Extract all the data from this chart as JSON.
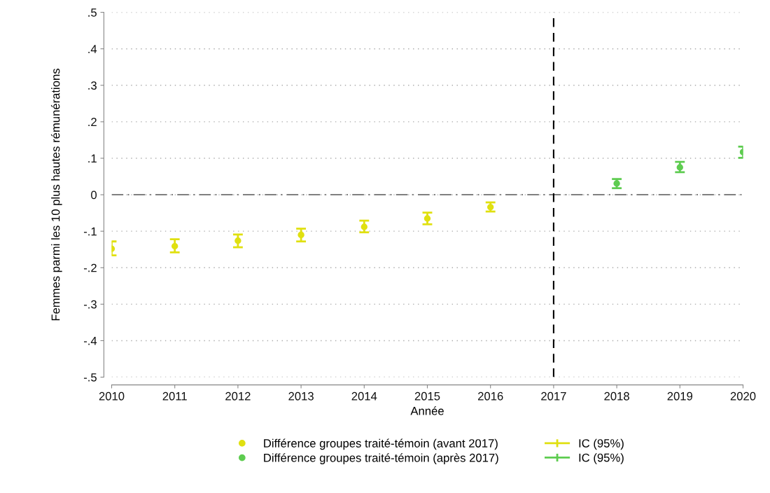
{
  "chart_data": {
    "type": "scatter",
    "xlabel": "Année",
    "ylabel": "Femmes parmi les 10 plus hautes rémunérations",
    "xlim": [
      2010,
      2020
    ],
    "xticks": [
      2010,
      2011,
      2012,
      2013,
      2014,
      2015,
      2016,
      2017,
      2018,
      2019,
      2020
    ],
    "ylim": [
      -0.5,
      0.5
    ],
    "yticks": [
      {
        "value": -0.5,
        "label": "-.5"
      },
      {
        "value": -0.4,
        "label": "-.4"
      },
      {
        "value": -0.3,
        "label": "-.3"
      },
      {
        "value": -0.2,
        "label": "-.2"
      },
      {
        "value": -0.1,
        "label": "-.1"
      },
      {
        "value": 0,
        "label": "0"
      },
      {
        "value": 0.1,
        "label": ".1"
      },
      {
        "value": 0.2,
        "label": ".2"
      },
      {
        "value": 0.3,
        "label": ".3"
      },
      {
        "value": 0.4,
        "label": ".4"
      },
      {
        "value": 0.5,
        "label": ".5"
      }
    ],
    "grid": "y",
    "legend": "bottom",
    "marker": "circle",
    "annotations": [
      "IC (95%)",
      "IC (95%)"
    ],
    "ref_lines": [
      {
        "axis": "y",
        "value": 0,
        "color": "#808080",
        "line_style": "dashed"
      },
      {
        "axis": "x",
        "value": 2017,
        "color": "#000000",
        "line_style": "dashed"
      }
    ],
    "series": [
      {
        "name": "Différence groupes traité-témoin (avant 2017)",
        "color": "#e0e010",
        "x": [
          2010,
          2011,
          2012,
          2013,
          2014,
          2015,
          2016
        ],
        "values": [
          -0.148,
          -0.141,
          -0.126,
          -0.11,
          -0.088,
          -0.065,
          -0.034
        ],
        "errors": [
          [
            -0.166,
            -0.128
          ],
          [
            -0.158,
            -0.122
          ],
          [
            -0.144,
            -0.109
          ],
          [
            -0.128,
            -0.093
          ],
          [
            -0.103,
            -0.071
          ],
          [
            -0.081,
            -0.049
          ],
          [
            -0.046,
            -0.021
          ]
        ]
      },
      {
        "name": "Différence groupes traité-témoin (après 2017)",
        "color": "#5ecc50",
        "x": [
          2018,
          2019,
          2020
        ],
        "values": [
          0.031,
          0.075,
          0.117
        ],
        "errors": [
          [
            0.018,
            0.043
          ],
          [
            0.062,
            0.09
          ],
          [
            0.101,
            0.132
          ]
        ]
      }
    ]
  }
}
